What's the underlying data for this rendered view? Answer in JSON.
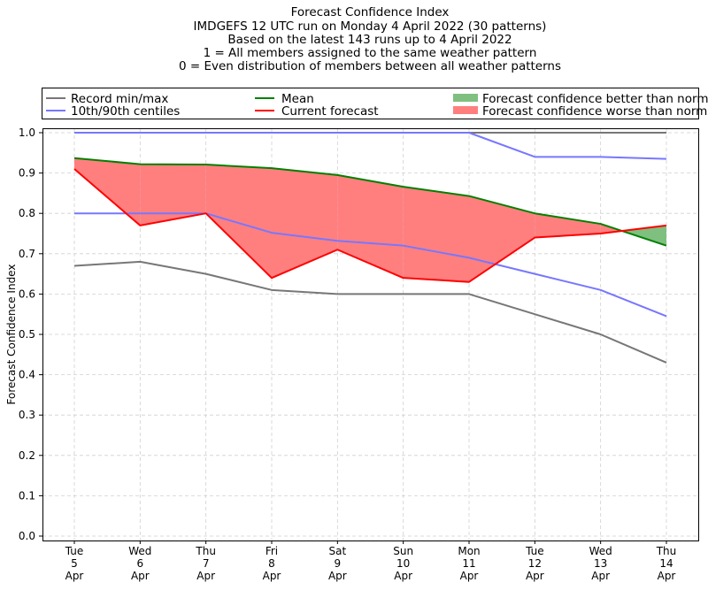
{
  "chart_data": {
    "type": "line",
    "title": [
      "Forecast Confidence Index",
      "IMDGEFS 12 UTC run on Monday 4 April 2022 (30 patterns)",
      "Based on the latest 143 runs up to 4 April 2022",
      "1 = All members assigned to the same weather pattern",
      "0 = Even distribution of members between all weather patterns"
    ],
    "xlabel": "",
    "ylabel": "Forecast Confidence Index",
    "categories": [
      [
        "Tue",
        "5",
        "Apr"
      ],
      [
        "Wed",
        "6",
        "Apr"
      ],
      [
        "Thu",
        "7",
        "Apr"
      ],
      [
        "Fri",
        "8",
        "Apr"
      ],
      [
        "Sat",
        "9",
        "Apr"
      ],
      [
        "Sun",
        "10",
        "Apr"
      ],
      [
        "Mon",
        "11",
        "Apr"
      ],
      [
        "Tue",
        "12",
        "Apr"
      ],
      [
        "Wed",
        "13",
        "Apr"
      ],
      [
        "Thu",
        "14",
        "Apr"
      ]
    ],
    "ylim": [
      0,
      1
    ],
    "yticks": [
      "0.0",
      "0.1",
      "0.2",
      "0.3",
      "0.4",
      "0.5",
      "0.6",
      "0.7",
      "0.8",
      "0.9",
      "1.0"
    ],
    "grid": true,
    "legend_placement": "top",
    "series": [
      {
        "name": "Record min/max",
        "color": "#777777",
        "role": "max",
        "values": [
          1,
          1,
          1,
          1,
          1,
          1,
          1,
          1,
          1,
          1
        ]
      },
      {
        "name": "Record min/max",
        "color": "#777777",
        "role": "min",
        "values": [
          0.67,
          0.68,
          0.65,
          0.61,
          0.6,
          0.6,
          0.6,
          0.55,
          0.5,
          0.43
        ]
      },
      {
        "name": "10th/90th centiles",
        "color": "#7777ff",
        "role": "p90",
        "values": [
          1,
          1,
          1,
          1,
          1,
          1,
          1,
          0.94,
          0.94,
          0.935
        ]
      },
      {
        "name": "10th/90th centiles",
        "color": "#7777ff",
        "role": "p10",
        "values": [
          0.8,
          0.8,
          0.8,
          0.752,
          0.732,
          0.72,
          0.69,
          0.65,
          0.61,
          0.545
        ]
      },
      {
        "name": "Mean",
        "color": "#008000",
        "role": "mean",
        "values": [
          0.937,
          0.922,
          0.921,
          0.912,
          0.895,
          0.866,
          0.843,
          0.8,
          0.774,
          0.72
        ]
      },
      {
        "name": "Current forecast",
        "color": "#ff0000",
        "role": "current",
        "values": [
          0.91,
          0.77,
          0.8,
          0.64,
          0.71,
          0.64,
          0.63,
          0.74,
          0.75,
          0.77
        ]
      }
    ],
    "fills": {
      "better": {
        "label": "Forecast confidence better than normal",
        "color": "#7fbf7f"
      },
      "worse": {
        "label": "Forecast confidence worse than normal",
        "color": "#ff7f7f"
      }
    },
    "legend": [
      "Record min/max",
      "10th/90th centiles",
      "Mean",
      "Current forecast",
      "Forecast confidence better than normal",
      "Forecast confidence worse than normal"
    ]
  }
}
